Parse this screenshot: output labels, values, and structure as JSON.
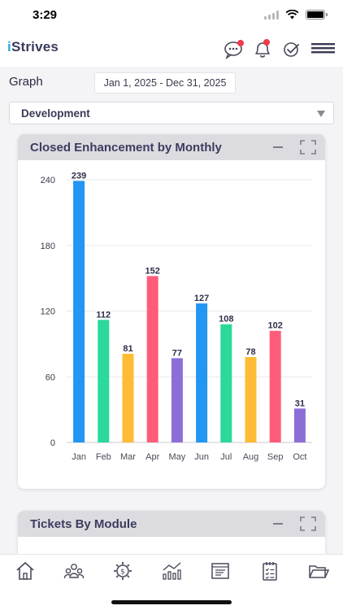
{
  "status_bar": {
    "time": "3:29"
  },
  "app": {
    "logo_i": "i",
    "logo_rest": "Strives"
  },
  "header_icons": [
    "chat-icon",
    "bell-icon",
    "check-circle-icon",
    "menu-icon"
  ],
  "filters": {
    "graph_label": "Graph",
    "date_range": "Jan 1, 2025 -  Dec 31, 2025",
    "project_select": "Development"
  },
  "cards": {
    "monthly": {
      "title": "Closed Enhancement by Monthly"
    },
    "modules": {
      "title": "Tickets By Module"
    }
  },
  "chart_data": {
    "type": "bar",
    "title": "Closed Enhancement by Monthly",
    "categories": [
      "Jan",
      "Feb",
      "Mar",
      "Apr",
      "May",
      "Jun",
      "Jul",
      "Aug",
      "Sep",
      "Oct"
    ],
    "values": [
      239,
      112,
      81,
      152,
      77,
      127,
      108,
      78,
      102,
      31
    ],
    "colors": [
      "#2196f3",
      "#2bd99a",
      "#ffbb33",
      "#ff5c7a",
      "#8c6fd6",
      "#2196f3",
      "#2bd99a",
      "#ffbb33",
      "#ff5c7a",
      "#8c6fd6"
    ],
    "ylim": [
      0,
      240
    ],
    "yticks": [
      0,
      60,
      120,
      180,
      240
    ],
    "data_labels": true,
    "grid": true
  },
  "bottom_nav": [
    "home-icon",
    "team-icon",
    "gear-dollar-icon",
    "analytics-icon",
    "board-icon",
    "checklist-icon",
    "folder-icon"
  ]
}
